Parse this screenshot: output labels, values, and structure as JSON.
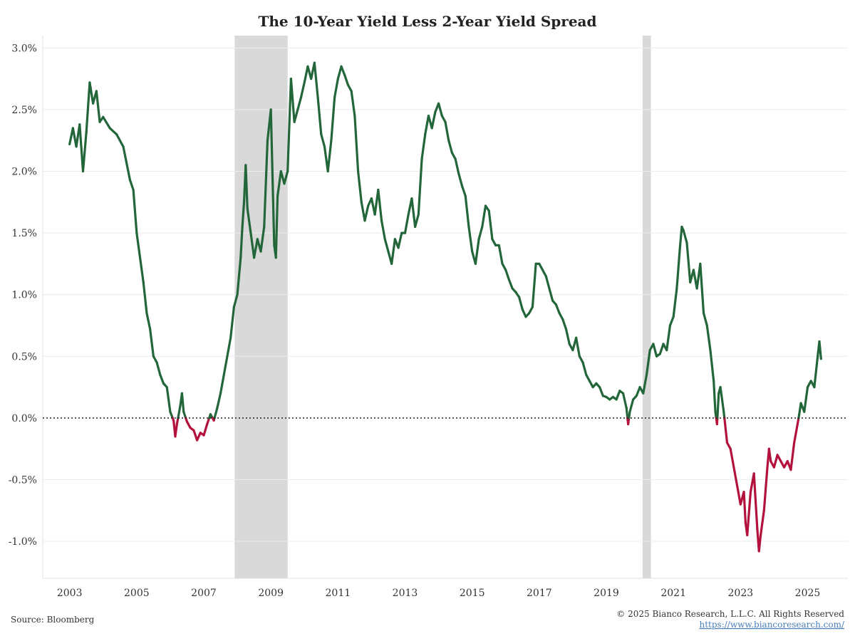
{
  "chart_data": {
    "type": "line",
    "title": "The 10-Year Yield Less 2-Year Yield Spread",
    "xlabel": "",
    "ylabel": "",
    "xlim": [
      2002.2,
      2026.2
    ],
    "ylim": [
      -1.3,
      3.1
    ],
    "x_ticks": [
      2003,
      2005,
      2007,
      2009,
      2011,
      2013,
      2015,
      2017,
      2019,
      2021,
      2023,
      2025
    ],
    "y_ticks": [
      {
        "value": 3.0,
        "label": "3.0%"
      },
      {
        "value": 2.5,
        "label": "2.5%"
      },
      {
        "value": 2.0,
        "label": "2.0%"
      },
      {
        "value": 1.5,
        "label": "1.5%"
      },
      {
        "value": 1.0,
        "label": "1.0%"
      },
      {
        "value": 0.5,
        "label": "0.5%"
      },
      {
        "value": 0.0,
        "label": "0.0%"
      },
      {
        "value": -0.5,
        "label": "-0.5%"
      },
      {
        "value": -1.0,
        "label": "-1.0%"
      }
    ],
    "grid": "horizontal",
    "zero_line": "dotted",
    "colors": {
      "positive": "#22663a",
      "negative": "#b3123c",
      "recession": "#d9d9d9",
      "grid": "#ececec"
    },
    "recession_bands": [
      [
        2007.92,
        2009.5
      ],
      [
        2020.08,
        2020.33
      ]
    ],
    "series": [
      {
        "values": [
          [
            2003.0,
            2.22
          ],
          [
            2003.1,
            2.35
          ],
          [
            2003.2,
            2.2
          ],
          [
            2003.3,
            2.38
          ],
          [
            2003.4,
            2.0
          ],
          [
            2003.5,
            2.32
          ],
          [
            2003.6,
            2.72
          ],
          [
            2003.7,
            2.55
          ],
          [
            2003.8,
            2.65
          ],
          [
            2003.9,
            2.4
          ],
          [
            2004.0,
            2.44
          ],
          [
            2004.2,
            2.35
          ],
          [
            2004.4,
            2.3
          ],
          [
            2004.6,
            2.2
          ],
          [
            2004.8,
            1.93
          ],
          [
            2004.9,
            1.85
          ],
          [
            2005.0,
            1.5
          ],
          [
            2005.1,
            1.3
          ],
          [
            2005.2,
            1.1
          ],
          [
            2005.3,
            0.85
          ],
          [
            2005.4,
            0.72
          ],
          [
            2005.5,
            0.5
          ],
          [
            2005.6,
            0.45
          ],
          [
            2005.7,
            0.35
          ],
          [
            2005.8,
            0.28
          ],
          [
            2005.9,
            0.25
          ],
          [
            2006.0,
            0.05
          ],
          [
            2006.1,
            -0.02
          ],
          [
            2006.15,
            -0.15
          ],
          [
            2006.2,
            -0.05
          ],
          [
            2006.3,
            0.1
          ],
          [
            2006.35,
            0.2
          ],
          [
            2006.4,
            0.05
          ],
          [
            2006.5,
            -0.03
          ],
          [
            2006.6,
            -0.08
          ],
          [
            2006.7,
            -0.1
          ],
          [
            2006.8,
            -0.18
          ],
          [
            2006.9,
            -0.12
          ],
          [
            2007.0,
            -0.14
          ],
          [
            2007.1,
            -0.05
          ],
          [
            2007.2,
            0.03
          ],
          [
            2007.3,
            -0.02
          ],
          [
            2007.4,
            0.08
          ],
          [
            2007.5,
            0.2
          ],
          [
            2007.6,
            0.35
          ],
          [
            2007.7,
            0.5
          ],
          [
            2007.8,
            0.65
          ],
          [
            2007.9,
            0.9
          ],
          [
            2008.0,
            1.0
          ],
          [
            2008.1,
            1.3
          ],
          [
            2008.15,
            1.55
          ],
          [
            2008.2,
            1.75
          ],
          [
            2008.25,
            2.05
          ],
          [
            2008.3,
            1.7
          ],
          [
            2008.4,
            1.5
          ],
          [
            2008.5,
            1.3
          ],
          [
            2008.6,
            1.45
          ],
          [
            2008.7,
            1.35
          ],
          [
            2008.8,
            1.55
          ],
          [
            2008.9,
            2.25
          ],
          [
            2009.0,
            2.5
          ],
          [
            2009.1,
            1.4
          ],
          [
            2009.15,
            1.3
          ],
          [
            2009.2,
            1.8
          ],
          [
            2009.3,
            2.0
          ],
          [
            2009.4,
            1.9
          ],
          [
            2009.5,
            2.0
          ],
          [
            2009.6,
            2.75
          ],
          [
            2009.7,
            2.4
          ],
          [
            2009.8,
            2.5
          ],
          [
            2009.9,
            2.6
          ],
          [
            2010.0,
            2.72
          ],
          [
            2010.1,
            2.85
          ],
          [
            2010.2,
            2.75
          ],
          [
            2010.3,
            2.88
          ],
          [
            2010.4,
            2.6
          ],
          [
            2010.5,
            2.3
          ],
          [
            2010.6,
            2.2
          ],
          [
            2010.7,
            2.0
          ],
          [
            2010.8,
            2.25
          ],
          [
            2010.9,
            2.6
          ],
          [
            2011.0,
            2.75
          ],
          [
            2011.1,
            2.85
          ],
          [
            2011.2,
            2.78
          ],
          [
            2011.3,
            2.7
          ],
          [
            2011.4,
            2.65
          ],
          [
            2011.5,
            2.45
          ],
          [
            2011.6,
            2.0
          ],
          [
            2011.7,
            1.75
          ],
          [
            2011.8,
            1.6
          ],
          [
            2011.9,
            1.72
          ],
          [
            2012.0,
            1.78
          ],
          [
            2012.1,
            1.65
          ],
          [
            2012.2,
            1.85
          ],
          [
            2012.3,
            1.6
          ],
          [
            2012.4,
            1.45
          ],
          [
            2012.5,
            1.35
          ],
          [
            2012.6,
            1.25
          ],
          [
            2012.7,
            1.45
          ],
          [
            2012.8,
            1.38
          ],
          [
            2012.9,
            1.5
          ],
          [
            2013.0,
            1.5
          ],
          [
            2013.1,
            1.65
          ],
          [
            2013.2,
            1.78
          ],
          [
            2013.3,
            1.55
          ],
          [
            2013.4,
            1.65
          ],
          [
            2013.5,
            2.1
          ],
          [
            2013.6,
            2.3
          ],
          [
            2013.7,
            2.45
          ],
          [
            2013.8,
            2.35
          ],
          [
            2013.9,
            2.48
          ],
          [
            2014.0,
            2.55
          ],
          [
            2014.1,
            2.45
          ],
          [
            2014.2,
            2.4
          ],
          [
            2014.3,
            2.25
          ],
          [
            2014.4,
            2.15
          ],
          [
            2014.5,
            2.1
          ],
          [
            2014.6,
            1.98
          ],
          [
            2014.7,
            1.88
          ],
          [
            2014.8,
            1.8
          ],
          [
            2014.9,
            1.55
          ],
          [
            2015.0,
            1.35
          ],
          [
            2015.1,
            1.25
          ],
          [
            2015.2,
            1.45
          ],
          [
            2015.3,
            1.55
          ],
          [
            2015.4,
            1.72
          ],
          [
            2015.5,
            1.68
          ],
          [
            2015.6,
            1.45
          ],
          [
            2015.7,
            1.4
          ],
          [
            2015.8,
            1.4
          ],
          [
            2015.9,
            1.25
          ],
          [
            2016.0,
            1.2
          ],
          [
            2016.1,
            1.12
          ],
          [
            2016.2,
            1.05
          ],
          [
            2016.3,
            1.02
          ],
          [
            2016.4,
            0.98
          ],
          [
            2016.5,
            0.88
          ],
          [
            2016.6,
            0.82
          ],
          [
            2016.7,
            0.85
          ],
          [
            2016.8,
            0.9
          ],
          [
            2016.9,
            1.25
          ],
          [
            2017.0,
            1.25
          ],
          [
            2017.1,
            1.2
          ],
          [
            2017.2,
            1.15
          ],
          [
            2017.3,
            1.05
          ],
          [
            2017.4,
            0.95
          ],
          [
            2017.5,
            0.92
          ],
          [
            2017.6,
            0.85
          ],
          [
            2017.7,
            0.8
          ],
          [
            2017.8,
            0.72
          ],
          [
            2017.9,
            0.6
          ],
          [
            2018.0,
            0.55
          ],
          [
            2018.1,
            0.65
          ],
          [
            2018.2,
            0.5
          ],
          [
            2018.3,
            0.45
          ],
          [
            2018.4,
            0.35
          ],
          [
            2018.5,
            0.3
          ],
          [
            2018.6,
            0.25
          ],
          [
            2018.7,
            0.28
          ],
          [
            2018.8,
            0.25
          ],
          [
            2018.9,
            0.18
          ],
          [
            2019.0,
            0.17
          ],
          [
            2019.1,
            0.15
          ],
          [
            2019.2,
            0.17
          ],
          [
            2019.3,
            0.15
          ],
          [
            2019.4,
            0.22
          ],
          [
            2019.5,
            0.2
          ],
          [
            2019.6,
            0.08
          ],
          [
            2019.65,
            -0.05
          ],
          [
            2019.7,
            0.05
          ],
          [
            2019.8,
            0.15
          ],
          [
            2019.9,
            0.18
          ],
          [
            2020.0,
            0.25
          ],
          [
            2020.1,
            0.2
          ],
          [
            2020.2,
            0.35
          ],
          [
            2020.3,
            0.55
          ],
          [
            2020.4,
            0.6
          ],
          [
            2020.5,
            0.5
          ],
          [
            2020.6,
            0.52
          ],
          [
            2020.7,
            0.6
          ],
          [
            2020.8,
            0.55
          ],
          [
            2020.9,
            0.75
          ],
          [
            2021.0,
            0.82
          ],
          [
            2021.1,
            1.05
          ],
          [
            2021.2,
            1.4
          ],
          [
            2021.25,
            1.55
          ],
          [
            2021.3,
            1.52
          ],
          [
            2021.4,
            1.42
          ],
          [
            2021.5,
            1.1
          ],
          [
            2021.6,
            1.2
          ],
          [
            2021.7,
            1.05
          ],
          [
            2021.8,
            1.25
          ],
          [
            2021.9,
            0.85
          ],
          [
            2022.0,
            0.75
          ],
          [
            2022.1,
            0.55
          ],
          [
            2022.2,
            0.3
          ],
          [
            2022.25,
            0.05
          ],
          [
            2022.3,
            -0.05
          ],
          [
            2022.35,
            0.2
          ],
          [
            2022.4,
            0.25
          ],
          [
            2022.5,
            0.05
          ],
          [
            2022.6,
            -0.2
          ],
          [
            2022.7,
            -0.25
          ],
          [
            2022.8,
            -0.4
          ],
          [
            2022.9,
            -0.55
          ],
          [
            2023.0,
            -0.7
          ],
          [
            2023.1,
            -0.6
          ],
          [
            2023.15,
            -0.85
          ],
          [
            2023.2,
            -0.95
          ],
          [
            2023.3,
            -0.6
          ],
          [
            2023.4,
            -0.45
          ],
          [
            2023.5,
            -0.9
          ],
          [
            2023.55,
            -1.08
          ],
          [
            2023.6,
            -0.95
          ],
          [
            2023.7,
            -0.75
          ],
          [
            2023.8,
            -0.4
          ],
          [
            2023.85,
            -0.25
          ],
          [
            2023.9,
            -0.35
          ],
          [
            2024.0,
            -0.4
          ],
          [
            2024.1,
            -0.3
          ],
          [
            2024.2,
            -0.35
          ],
          [
            2024.3,
            -0.4
          ],
          [
            2024.4,
            -0.35
          ],
          [
            2024.5,
            -0.42
          ],
          [
            2024.6,
            -0.2
          ],
          [
            2024.7,
            -0.05
          ],
          [
            2024.75,
            0.03
          ],
          [
            2024.8,
            0.12
          ],
          [
            2024.9,
            0.05
          ],
          [
            2025.0,
            0.25
          ],
          [
            2025.1,
            0.3
          ],
          [
            2025.2,
            0.25
          ],
          [
            2025.3,
            0.5
          ],
          [
            2025.35,
            0.62
          ],
          [
            2025.4,
            0.48
          ]
        ]
      }
    ]
  },
  "footer": {
    "source": "Source: Bloomberg",
    "copyright": "© 2025 Bianco Research, L.L.C. All Rights Reserved",
    "url": "https://www.biancoresearch.com/"
  }
}
